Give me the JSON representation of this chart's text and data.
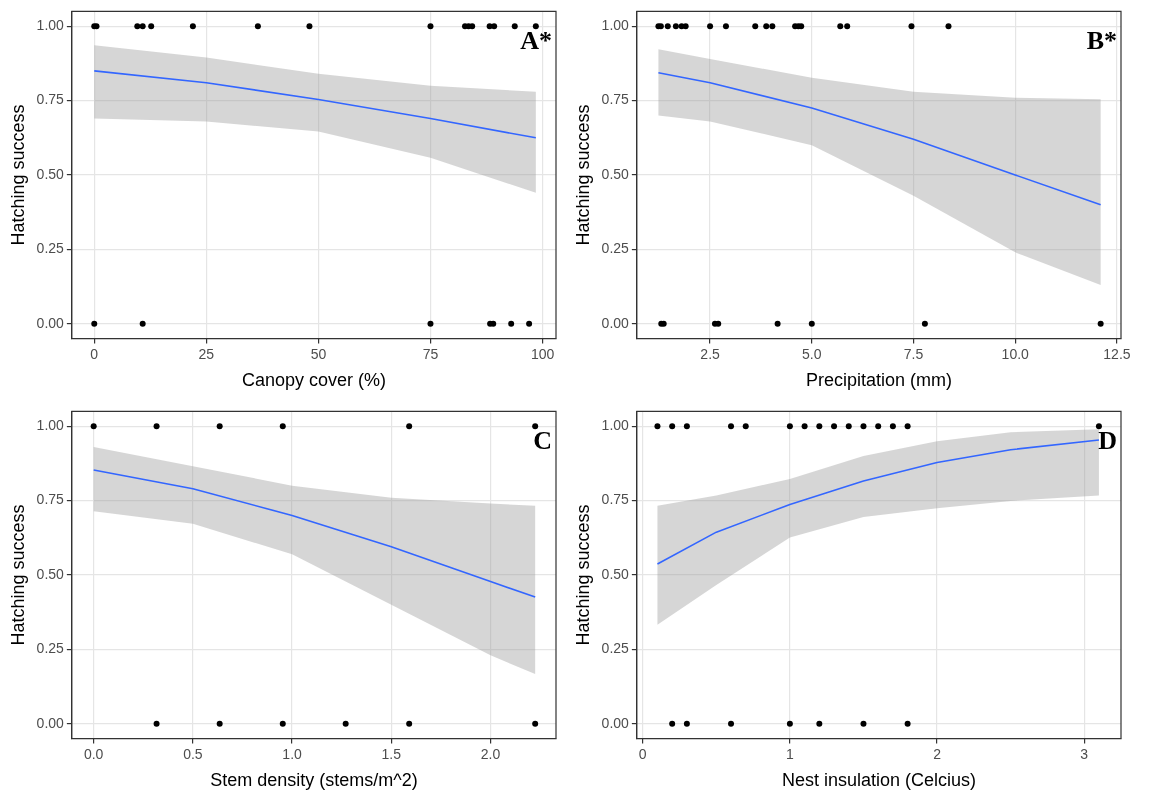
{
  "chart_data": [
    {
      "type": "scatter",
      "xlabel": "Canopy cover (%)",
      "ylabel": "Hatching success",
      "annotations": [
        "A*"
      ],
      "xlim": [
        -5,
        103
      ],
      "ylim": [
        -0.05,
        1.05
      ],
      "xticks": [
        0,
        25,
        50,
        75,
        100
      ],
      "yticks": [
        {
          "value": 0,
          "label": "0.00"
        },
        {
          "value": 0.25,
          "label": "0.25"
        },
        {
          "value": 0.5,
          "label": "0.50"
        },
        {
          "value": 0.75,
          "label": "0.75"
        },
        {
          "value": 1,
          "label": "1.00"
        }
      ],
      "grid": true,
      "legend": false,
      "marker": "circle",
      "series": [
        {
          "type": "scatter",
          "color": "#000000",
          "x": [
            0,
            0.5,
            9.6,
            10.8,
            12.7,
            22,
            36.5,
            48,
            75,
            82.7,
            83.5,
            84.3,
            88.2,
            89.2,
            93.8,
            98.5,
            0,
            10.8,
            75,
            88.3,
            89,
            93,
            97
          ],
          "values": [
            1,
            1,
            1,
            1,
            1,
            1,
            1,
            1,
            1,
            1,
            1,
            1,
            1,
            1,
            1,
            1,
            0,
            0,
            0,
            0,
            0,
            0,
            0
          ]
        },
        {
          "type": "line",
          "color": "#3366ff",
          "line_style": "solid",
          "marker": "none",
          "x": [
            0,
            25,
            50,
            75,
            98.5
          ],
          "values": [
            0.85,
            0.81,
            0.754,
            0.69,
            0.625
          ],
          "lower": [
            0.69,
            0.68,
            0.646,
            0.558,
            0.44
          ],
          "upper": [
            0.936,
            0.895,
            0.84,
            0.8,
            0.78
          ]
        }
      ]
    },
    {
      "type": "scatter",
      "xlabel": "Precipitation (mm)",
      "ylabel": "Hatching success",
      "annotations": [
        "B*"
      ],
      "xlim": [
        0.7,
        12.6
      ],
      "ylim": [
        -0.05,
        1.05
      ],
      "xticks": [
        2.5,
        {
          "value": 5,
          "label": "5.0"
        },
        7.5,
        {
          "value": 10,
          "label": "10.0"
        },
        12.5
      ],
      "yticks": [
        {
          "value": 0,
          "label": "0.00"
        },
        {
          "value": 0.25,
          "label": "0.25"
        },
        {
          "value": 0.5,
          "label": "0.50"
        },
        {
          "value": 0.75,
          "label": "0.75"
        },
        {
          "value": 1,
          "label": "1.00"
        }
      ],
      "grid": true,
      "legend": false,
      "marker": "circle",
      "series": [
        {
          "type": "scatter",
          "color": "#000000",
          "x": [
            1.23,
            1.29,
            1.46,
            1.66,
            1.8,
            1.9,
            2.5,
            2.89,
            3.61,
            3.88,
            4.03,
            4.59,
            4.67,
            4.74,
            5.7,
            5.87,
            7.45,
            8.36,
            1.3,
            1.36,
            2.62,
            2.7,
            4.16,
            5.0,
            7.78,
            12.1
          ],
          "values": [
            1,
            1,
            1,
            1,
            1,
            1,
            1,
            1,
            1,
            1,
            1,
            1,
            1,
            1,
            1,
            1,
            1,
            1,
            0,
            0,
            0,
            0,
            0,
            0,
            0,
            0
          ]
        },
        {
          "type": "line",
          "color": "#3366ff",
          "line_style": "solid",
          "marker": "none",
          "x": [
            1.23,
            2.5,
            5,
            7.5,
            10,
            12.1
          ],
          "values": [
            0.844,
            0.81,
            0.725,
            0.62,
            0.5,
            0.4
          ],
          "lower": [
            0.7,
            0.68,
            0.6,
            0.43,
            0.24,
            0.13
          ],
          "upper": [
            0.923,
            0.89,
            0.827,
            0.78,
            0.76,
            0.755
          ]
        }
      ]
    },
    {
      "type": "scatter",
      "xlabel": "Stem density (stems/m^2)",
      "ylabel": "Hatching success",
      "annotations": [
        "C"
      ],
      "xlim": [
        -0.11,
        2.33
      ],
      "ylim": [
        -0.05,
        1.05
      ],
      "xticks": [
        {
          "value": 0,
          "label": "0.0"
        },
        0.5,
        {
          "value": 1,
          "label": "1.0"
        },
        1.5,
        {
          "value": 2,
          "label": "2.0"
        }
      ],
      "yticks": [
        {
          "value": 0,
          "label": "0.00"
        },
        {
          "value": 0.25,
          "label": "0.25"
        },
        {
          "value": 0.5,
          "label": "0.50"
        },
        {
          "value": 0.75,
          "label": "0.75"
        },
        {
          "value": 1,
          "label": "1.00"
        }
      ],
      "grid": true,
      "legend": false,
      "marker": "circle",
      "series": [
        {
          "type": "scatter",
          "color": "#000000",
          "x": [
            0,
            0.317,
            0.635,
            0.953,
            1.59,
            2.225,
            0.317,
            0.635,
            0.953,
            1.27,
            1.59,
            2.225
          ],
          "values": [
            1,
            1,
            1,
            1,
            1,
            1,
            0,
            0,
            0,
            0,
            0,
            0
          ]
        },
        {
          "type": "line",
          "color": "#3366ff",
          "line_style": "solid",
          "marker": "none",
          "x": [
            0,
            0.5,
            1,
            1.5,
            2,
            2.225
          ],
          "values": [
            0.853,
            0.79,
            0.7,
            0.595,
            0.478,
            0.426
          ],
          "lower": [
            0.714,
            0.672,
            0.57,
            0.4,
            0.23,
            0.167
          ],
          "upper": [
            0.93,
            0.866,
            0.8,
            0.76,
            0.74,
            0.733
          ]
        }
      ]
    },
    {
      "type": "scatter",
      "xlabel": "Nest insulation (Celcius)",
      "ylabel": "Hatching success",
      "annotations": [
        "D"
      ],
      "xlim": [
        -0.04,
        3.25
      ],
      "ylim": [
        -0.05,
        1.05
      ],
      "xticks": [
        0,
        1,
        2,
        3
      ],
      "yticks": [
        {
          "value": 0,
          "label": "0.00"
        },
        {
          "value": 0.25,
          "label": "0.25"
        },
        {
          "value": 0.5,
          "label": "0.50"
        },
        {
          "value": 0.75,
          "label": "0.75"
        },
        {
          "value": 1,
          "label": "1.00"
        }
      ],
      "grid": true,
      "legend": false,
      "marker": "circle",
      "series": [
        {
          "type": "scatter",
          "color": "#000000",
          "x": [
            0.1,
            0.2,
            0.3,
            0.6,
            0.7,
            1.0,
            1.1,
            1.2,
            1.3,
            1.4,
            1.5,
            1.6,
            1.7,
            1.8,
            3.1,
            0.2,
            0.3,
            0.6,
            1.0,
            1.2,
            1.5,
            1.8
          ],
          "values": [
            1,
            1,
            1,
            1,
            1,
            1,
            1,
            1,
            1,
            1,
            1,
            1,
            1,
            1,
            1,
            0,
            0,
            0,
            0,
            0,
            0,
            0
          ]
        },
        {
          "type": "line",
          "color": "#3366ff",
          "line_style": "solid",
          "marker": "none",
          "x": [
            0.1,
            0.5,
            1,
            1.5,
            2,
            2.5,
            3.1
          ],
          "values": [
            0.537,
            0.644,
            0.737,
            0.816,
            0.878,
            0.921,
            0.954
          ],
          "lower": [
            0.333,
            0.466,
            0.626,
            0.695,
            0.724,
            0.749,
            0.767
          ],
          "upper": [
            0.733,
            0.767,
            0.823,
            0.9,
            0.95,
            0.98,
            0.99
          ]
        }
      ]
    }
  ]
}
